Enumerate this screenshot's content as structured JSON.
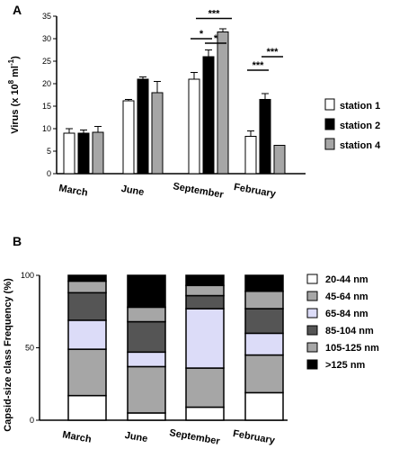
{
  "chart_data": [
    {
      "panel": "A",
      "type": "bar",
      "ylabel_main": "Virus (x 10",
      "ylabel_exp1": "8",
      "ylabel_mid": " ml",
      "ylabel_exp2": "-1",
      "ylabel_end": ")",
      "ylim": [
        0,
        35
      ],
      "yticks": [
        "0",
        "5",
        "10",
        "15",
        "20",
        "25",
        "30",
        "35"
      ],
      "categories": [
        "March",
        "June",
        "September",
        "February"
      ],
      "series": [
        {
          "name": "station 1",
          "color": "#ffffff",
          "values": [
            9.0,
            16.2,
            21.0,
            8.3
          ],
          "errors": [
            1.0,
            0.3,
            1.5,
            1.2
          ]
        },
        {
          "name": "station 2",
          "color": "#000000",
          "values": [
            9.0,
            21.0,
            26.0,
            16.5
          ],
          "errors": [
            0.7,
            0.5,
            1.5,
            1.3
          ]
        },
        {
          "name": "station 4",
          "color": "#a6a6a6",
          "values": [
            9.2,
            18.0,
            31.5,
            6.3
          ],
          "errors": [
            1.3,
            2.5,
            0.7,
            0.0
          ]
        }
      ],
      "significance": [
        {
          "category": 2,
          "from": 1,
          "to": 2,
          "label": "***",
          "y": 34.5
        },
        {
          "category": 2,
          "from": 0,
          "to": 1,
          "label": "*",
          "y": 30.0
        },
        {
          "category": 2,
          "from": 1,
          "to": 2,
          "label": "*",
          "y": 29.0
        },
        {
          "category": 3,
          "from": 0,
          "to": 1,
          "label": "***",
          "y": 23.0
        },
        {
          "category": 3,
          "from": 1,
          "to": 2,
          "label": "***",
          "y": 26.0
        }
      ]
    },
    {
      "panel": "B",
      "type": "bar",
      "stacked": true,
      "ylabel": "Capsid-size class Frequency (%)",
      "ylim": [
        0,
        100
      ],
      "yticks": [
        "0",
        "50",
        "100"
      ],
      "categories": [
        "March",
        "June",
        "September",
        "February"
      ],
      "series": [
        {
          "name": "20-44 nm",
          "color": "#ffffff",
          "values": [
            17,
            5,
            9,
            19
          ]
        },
        {
          "name": "45-64 nm",
          "color": "#a6a6a6",
          "values": [
            32,
            32,
            27,
            26
          ]
        },
        {
          "name": "65-84 nm",
          "color": "#dcdcf8",
          "values": [
            20,
            10,
            41,
            15
          ]
        },
        {
          "name": "85-104 nm",
          "color": "#555555",
          "values": [
            19,
            21,
            9,
            17
          ]
        },
        {
          "name": "105-125 nm",
          "color": "#a6a6a6",
          "values": [
            8,
            10,
            7,
            12
          ]
        },
        {
          "name": ">125 nm",
          "color": "#000000",
          "values": [
            4,
            22,
            7,
            11
          ]
        }
      ]
    }
  ]
}
